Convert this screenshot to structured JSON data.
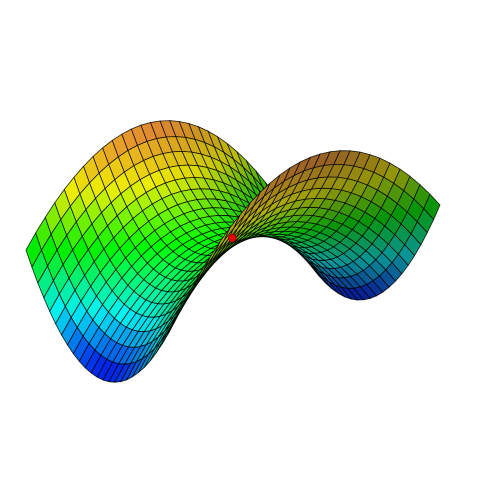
{
  "figure": {
    "surface_kind": "saddle",
    "equation": "",
    "marker_color": "#e00000",
    "mesh_line_color": "#000000",
    "colormap": [
      "#0000ff",
      "#00ffff",
      "#00ff00",
      "#ffff00",
      "#ff8c3c"
    ]
  }
}
